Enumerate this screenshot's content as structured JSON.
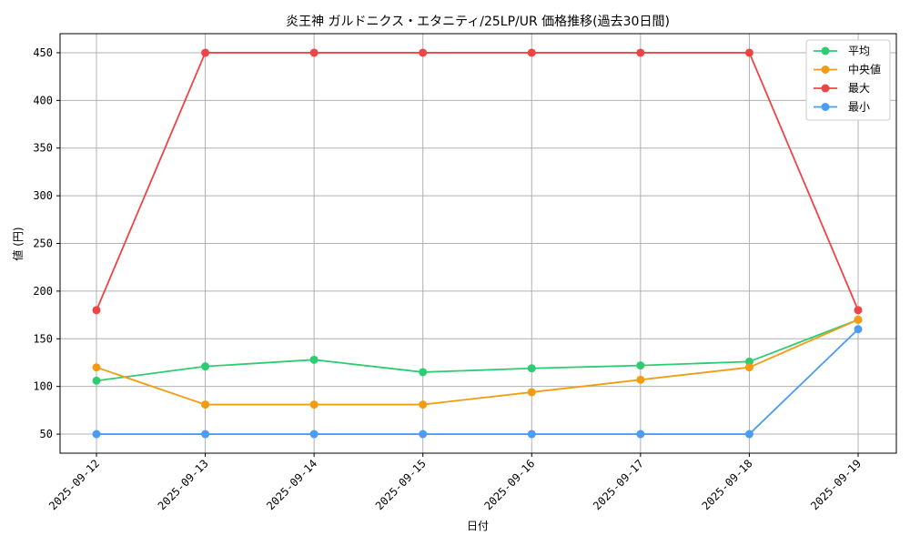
{
  "chart_data": {
    "type": "line",
    "title": "炎王神 ガルドニクス・エタニティ/25LP/UR 価格推移(過去30日間)",
    "xlabel": "日付",
    "ylabel": "値 (円)",
    "categories": [
      "2025-09-12",
      "2025-09-13",
      "2025-09-14",
      "2025-09-15",
      "2025-09-16",
      "2025-09-17",
      "2025-09-18",
      "2025-09-19"
    ],
    "ylim": [
      30,
      470
    ],
    "yticks": [
      50,
      100,
      150,
      200,
      250,
      300,
      350,
      400,
      450
    ],
    "grid": true,
    "legend_position": "top-right",
    "series": [
      {
        "name": "平均",
        "color": "#2ecc71",
        "values": [
          106,
          121,
          128,
          115,
          119,
          122,
          126,
          170
        ]
      },
      {
        "name": "中央値",
        "color": "#f39c12",
        "values": [
          120,
          81,
          81,
          81,
          94,
          107,
          120,
          170
        ]
      },
      {
        "name": "最大",
        "color": "#ef4444",
        "values": [
          180,
          450,
          450,
          450,
          450,
          450,
          450,
          180
        ]
      },
      {
        "name": "最小",
        "color": "#4b9cf5",
        "values": [
          50,
          50,
          50,
          50,
          50,
          50,
          50,
          160
        ]
      }
    ]
  }
}
